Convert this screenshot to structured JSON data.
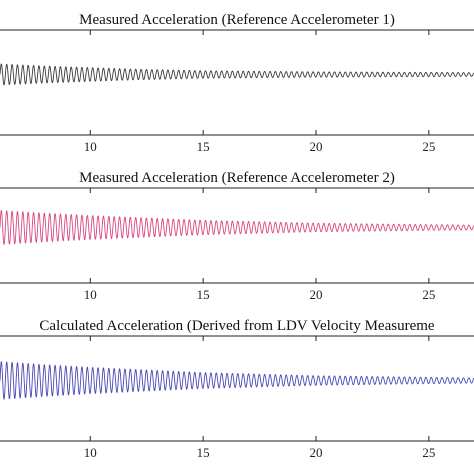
{
  "chart_data": [
    {
      "type": "line",
      "title": "Measured Acceleration (Reference Accelerometer 1)",
      "xlabel": "",
      "ylabel": "",
      "xlim": [
        6,
        27
      ],
      "xticks": [
        "10",
        "15",
        "20",
        "25"
      ],
      "xtick_values": [
        10,
        15,
        20,
        25
      ],
      "grid": false,
      "series": [
        {
          "color": "#3a3a3a",
          "signal": "damped sinusoid",
          "frequency_hz": 4.2,
          "x": [
            6,
            8,
            10,
            12,
            15,
            20,
            25,
            27
          ],
          "amplitude": [
            0.2,
            0.16,
            0.13,
            0.1,
            0.07,
            0.05,
            0.04,
            0.035
          ]
        }
      ]
    },
    {
      "type": "line",
      "title": "Measured Acceleration (Reference Accelerometer 2)",
      "xlabel": "",
      "ylabel": "",
      "xlim": [
        6,
        27
      ],
      "xticks": [
        "10",
        "15",
        "20",
        "25"
      ],
      "xtick_values": [
        10,
        15,
        20,
        25
      ],
      "grid": false,
      "series": [
        {
          "color": "#d9477f",
          "signal": "damped sinusoid",
          "frequency_hz": 4.2,
          "x": [
            6,
            8,
            10,
            12,
            15,
            20,
            25,
            27
          ],
          "amplitude": [
            0.36,
            0.3,
            0.25,
            0.21,
            0.15,
            0.09,
            0.06,
            0.05
          ]
        }
      ]
    },
    {
      "type": "line",
      "title": "Calculated Acceleration (Derived from LDV Velocity Measureme",
      "xlabel": "",
      "ylabel": "",
      "xlim": [
        6,
        27
      ],
      "xticks": [
        "10",
        "15",
        "20",
        "25"
      ],
      "xtick_values": [
        10,
        15,
        20,
        25
      ],
      "grid": false,
      "series": [
        {
          "color": "#4a48b8",
          "signal": "damped sinusoid",
          "frequency_hz": 4.2,
          "x": [
            6,
            8,
            10,
            12,
            15,
            20,
            25,
            27
          ],
          "amplitude": [
            0.36,
            0.3,
            0.25,
            0.21,
            0.15,
            0.09,
            0.06,
            0.05
          ]
        }
      ]
    }
  ]
}
